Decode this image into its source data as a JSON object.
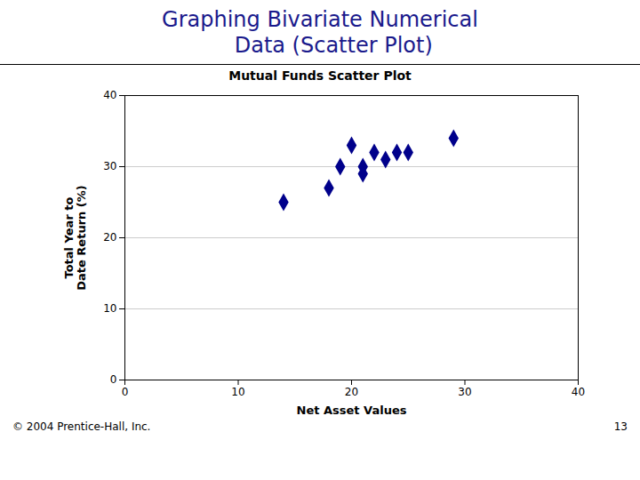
{
  "chart_data": {
    "type": "scatter",
    "title": "Graphing Bivariate Numerical\n    Data (Scatter Plot)",
    "subtitle": "Mutual Funds Scatter Plot",
    "xlabel": "Net Asset Values",
    "ylabel": "Total Year to\nDate Return (%)",
    "x": [
      14,
      18,
      19,
      20,
      21,
      21,
      22,
      23,
      24,
      25,
      29
    ],
    "values": [
      25,
      27,
      30,
      33,
      30,
      29,
      32,
      31,
      32,
      32,
      34
    ],
    "color": "#00008B",
    "marker": "diamond",
    "xlim": [
      0,
      40
    ],
    "ylim": [
      0,
      40
    ],
    "xticks": [
      0,
      10,
      20,
      30,
      40
    ],
    "yticks": [
      0,
      10,
      20,
      30,
      40
    ],
    "grid": "y",
    "annotations": [
      "© 2004 Prentice-Hall, Inc.",
      "13"
    ]
  }
}
